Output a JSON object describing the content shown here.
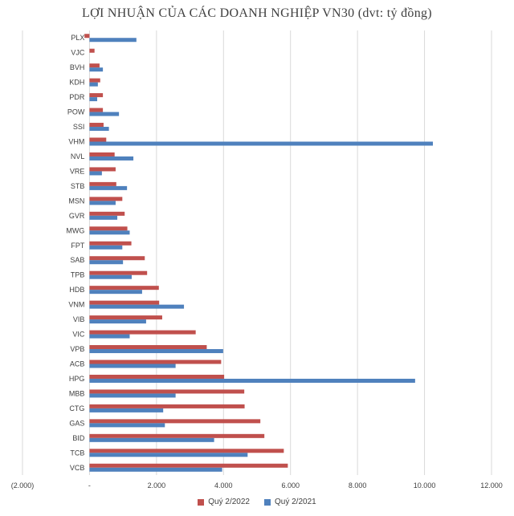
{
  "chart_data": {
    "type": "bar",
    "orientation": "horizontal",
    "title": "LỢI NHUẬN CỦA CÁC DOANH NGHIỆP VN30 (dvt: tỷ đồng)",
    "xlim": [
      -2000,
      12000
    ],
    "x_ticks": [
      -2000,
      0,
      2000,
      4000,
      6000,
      8000,
      10000,
      12000
    ],
    "x_tick_labels": [
      "(2.000)",
      "-",
      "2.000",
      "4.000",
      "6.000",
      "8.000",
      "10.000",
      "12.000"
    ],
    "grid": "vertical",
    "legend_position": "bottom",
    "categories": [
      "PLX",
      "VJC",
      "BVH",
      "KDH",
      "PDR",
      "POW",
      "SSI",
      "VHM",
      "NVL",
      "VRE",
      "STB",
      "MSN",
      "GVR",
      "MWG",
      "FPT",
      "SAB",
      "TPB",
      "HDB",
      "VNM",
      "VIB",
      "VIC",
      "VPB",
      "ACB",
      "HPG",
      "MBB",
      "CTG",
      "GAS",
      "BID",
      "TCB",
      "VCB"
    ],
    "series": [
      {
        "name": "Quý 2/2022",
        "color": "#c0504d",
        "values": [
          -150,
          150,
          300,
          320,
          400,
          400,
          420,
          500,
          750,
          780,
          800,
          980,
          1050,
          1130,
          1250,
          1650,
          1720,
          2070,
          2080,
          2170,
          3170,
          3500,
          3930,
          4020,
          4620,
          4630,
          5100,
          5220,
          5800,
          5920
        ]
      },
      {
        "name": "Quý 2/2021",
        "color": "#4f81bd",
        "values": [
          1400,
          0,
          400,
          250,
          230,
          880,
          580,
          10250,
          1310,
          370,
          1120,
          780,
          830,
          1200,
          980,
          1000,
          1260,
          1570,
          2820,
          1690,
          1200,
          3990,
          2570,
          9720,
          2570,
          2200,
          2250,
          3720,
          4720,
          3960
        ]
      }
    ]
  }
}
